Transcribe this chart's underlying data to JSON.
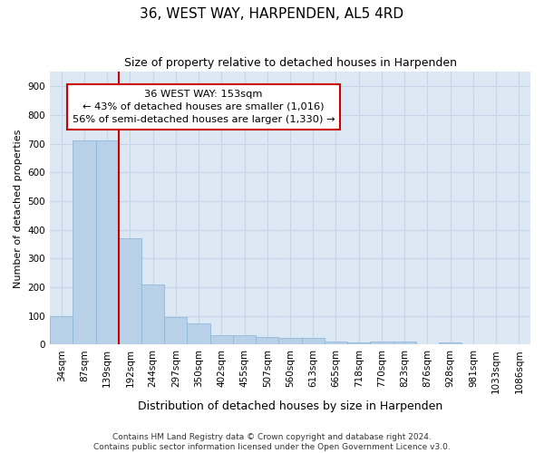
{
  "title": "36, WEST WAY, HARPENDEN, AL5 4RD",
  "subtitle": "Size of property relative to detached houses in Harpenden",
  "xlabel": "Distribution of detached houses by size in Harpenden",
  "ylabel": "Number of detached properties",
  "footer_line1": "Contains HM Land Registry data © Crown copyright and database right 2024.",
  "footer_line2": "Contains public sector information licensed under the Open Government Licence v3.0.",
  "bar_labels": [
    "34sqm",
    "87sqm",
    "139sqm",
    "192sqm",
    "244sqm",
    "297sqm",
    "350sqm",
    "402sqm",
    "455sqm",
    "507sqm",
    "560sqm",
    "613sqm",
    "665sqm",
    "718sqm",
    "770sqm",
    "823sqm",
    "876sqm",
    "928sqm",
    "981sqm",
    "1033sqm",
    "1086sqm"
  ],
  "bar_values": [
    100,
    710,
    710,
    370,
    210,
    95,
    72,
    33,
    33,
    27,
    22,
    22,
    10,
    7,
    10,
    10,
    0,
    7,
    0,
    0,
    0
  ],
  "bar_color": "#b8d0e8",
  "bar_edge_color": "#90b8d8",
  "grid_color": "#c8d4e8",
  "background_color": "#dce8f4",
  "annotation_line1": "36 WEST WAY: 153sqm",
  "annotation_line2": "← 43% of detached houses are smaller (1,016)",
  "annotation_line3": "56% of semi-detached houses are larger (1,330) →",
  "annotation_box_color": "#ffffff",
  "annotation_box_edge_color": "#cc0000",
  "vline_color": "#cc0000",
  "vline_x_index": 2.5,
  "ylim": [
    0,
    950
  ],
  "yticks": [
    0,
    100,
    200,
    300,
    400,
    500,
    600,
    700,
    800,
    900
  ],
  "title_fontsize": 11,
  "subtitle_fontsize": 9,
  "xlabel_fontsize": 9,
  "ylabel_fontsize": 8,
  "tick_fontsize": 7.5,
  "footer_fontsize": 6.5
}
